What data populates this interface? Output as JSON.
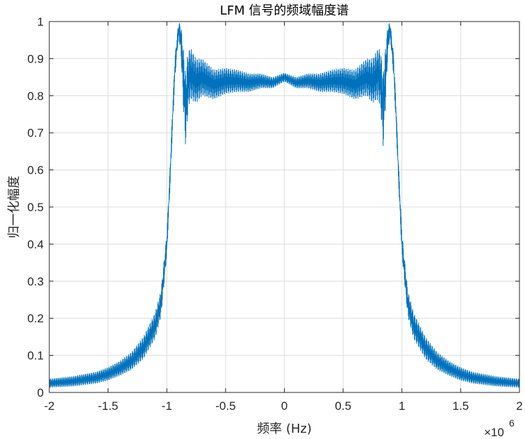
{
  "chart_data": {
    "type": "line",
    "title": "LFM 信号的频域幅度谱",
    "xlabel": "频率 (Hz)",
    "ylabel": "归一化幅度",
    "x_exponent_label": "×10",
    "x_exponent_power": "6",
    "x_scale": 1000000,
    "xlim": [
      -2,
      2
    ],
    "ylim": [
      0,
      1
    ],
    "x_tick_labels": [
      "-2",
      "-1.5",
      "-1",
      "-0.5",
      "0",
      "0.5",
      "1",
      "1.5",
      "2"
    ],
    "y_tick_labels": [
      "0",
      "0.1",
      "0.2",
      "0.3",
      "0.4",
      "0.5",
      "0.6",
      "0.7",
      "0.8",
      "0.9",
      "1"
    ],
    "grid": true,
    "line_color": "#0072BD",
    "series": [
      {
        "x": [
          -2.0,
          -1.8,
          -1.6,
          -1.5,
          -1.4,
          -1.3,
          -1.2,
          -1.1,
          -1.05,
          -1.0,
          -0.97,
          -0.95,
          -0.93,
          -0.9,
          -0.88,
          -0.86,
          -0.84,
          -0.82,
          -0.8,
          -0.75,
          -0.7,
          -0.6,
          -0.5,
          -0.4,
          -0.3,
          -0.2,
          -0.1,
          0.0,
          0.1,
          0.2,
          0.3,
          0.4,
          0.5,
          0.6,
          0.7,
          0.75,
          0.8,
          0.82,
          0.84,
          0.86,
          0.88,
          0.9,
          0.93,
          0.95,
          0.97,
          1.0,
          1.05,
          1.1,
          1.2,
          1.3,
          1.4,
          1.5,
          1.6,
          1.8,
          2.0
        ],
        "y": [
          0.025,
          0.03,
          0.04,
          0.05,
          0.065,
          0.085,
          0.12,
          0.18,
          0.24,
          0.4,
          0.6,
          0.75,
          0.88,
          0.98,
          0.95,
          0.85,
          0.76,
          0.84,
          0.86,
          0.84,
          0.85,
          0.83,
          0.84,
          0.84,
          0.835,
          0.84,
          0.835,
          0.85,
          0.835,
          0.84,
          0.835,
          0.84,
          0.84,
          0.83,
          0.85,
          0.84,
          0.86,
          0.84,
          0.76,
          0.85,
          0.95,
          0.98,
          0.88,
          0.75,
          0.6,
          0.4,
          0.24,
          0.18,
          0.12,
          0.085,
          0.065,
          0.05,
          0.04,
          0.03,
          0.025
        ],
        "ripple": [
          0.012,
          0.014,
          0.016,
          0.018,
          0.02,
          0.024,
          0.03,
          0.035,
          0.035,
          0.03,
          0.03,
          0.03,
          0.03,
          0.02,
          0.04,
          0.08,
          0.1,
          0.08,
          0.07,
          0.06,
          0.05,
          0.04,
          0.035,
          0.03,
          0.025,
          0.02,
          0.015,
          0.012,
          0.015,
          0.02,
          0.025,
          0.03,
          0.035,
          0.04,
          0.05,
          0.06,
          0.07,
          0.08,
          0.1,
          0.08,
          0.04,
          0.02,
          0.03,
          0.03,
          0.03,
          0.03,
          0.035,
          0.035,
          0.03,
          0.024,
          0.02,
          0.018,
          0.016,
          0.014,
          0.012
        ]
      }
    ]
  }
}
